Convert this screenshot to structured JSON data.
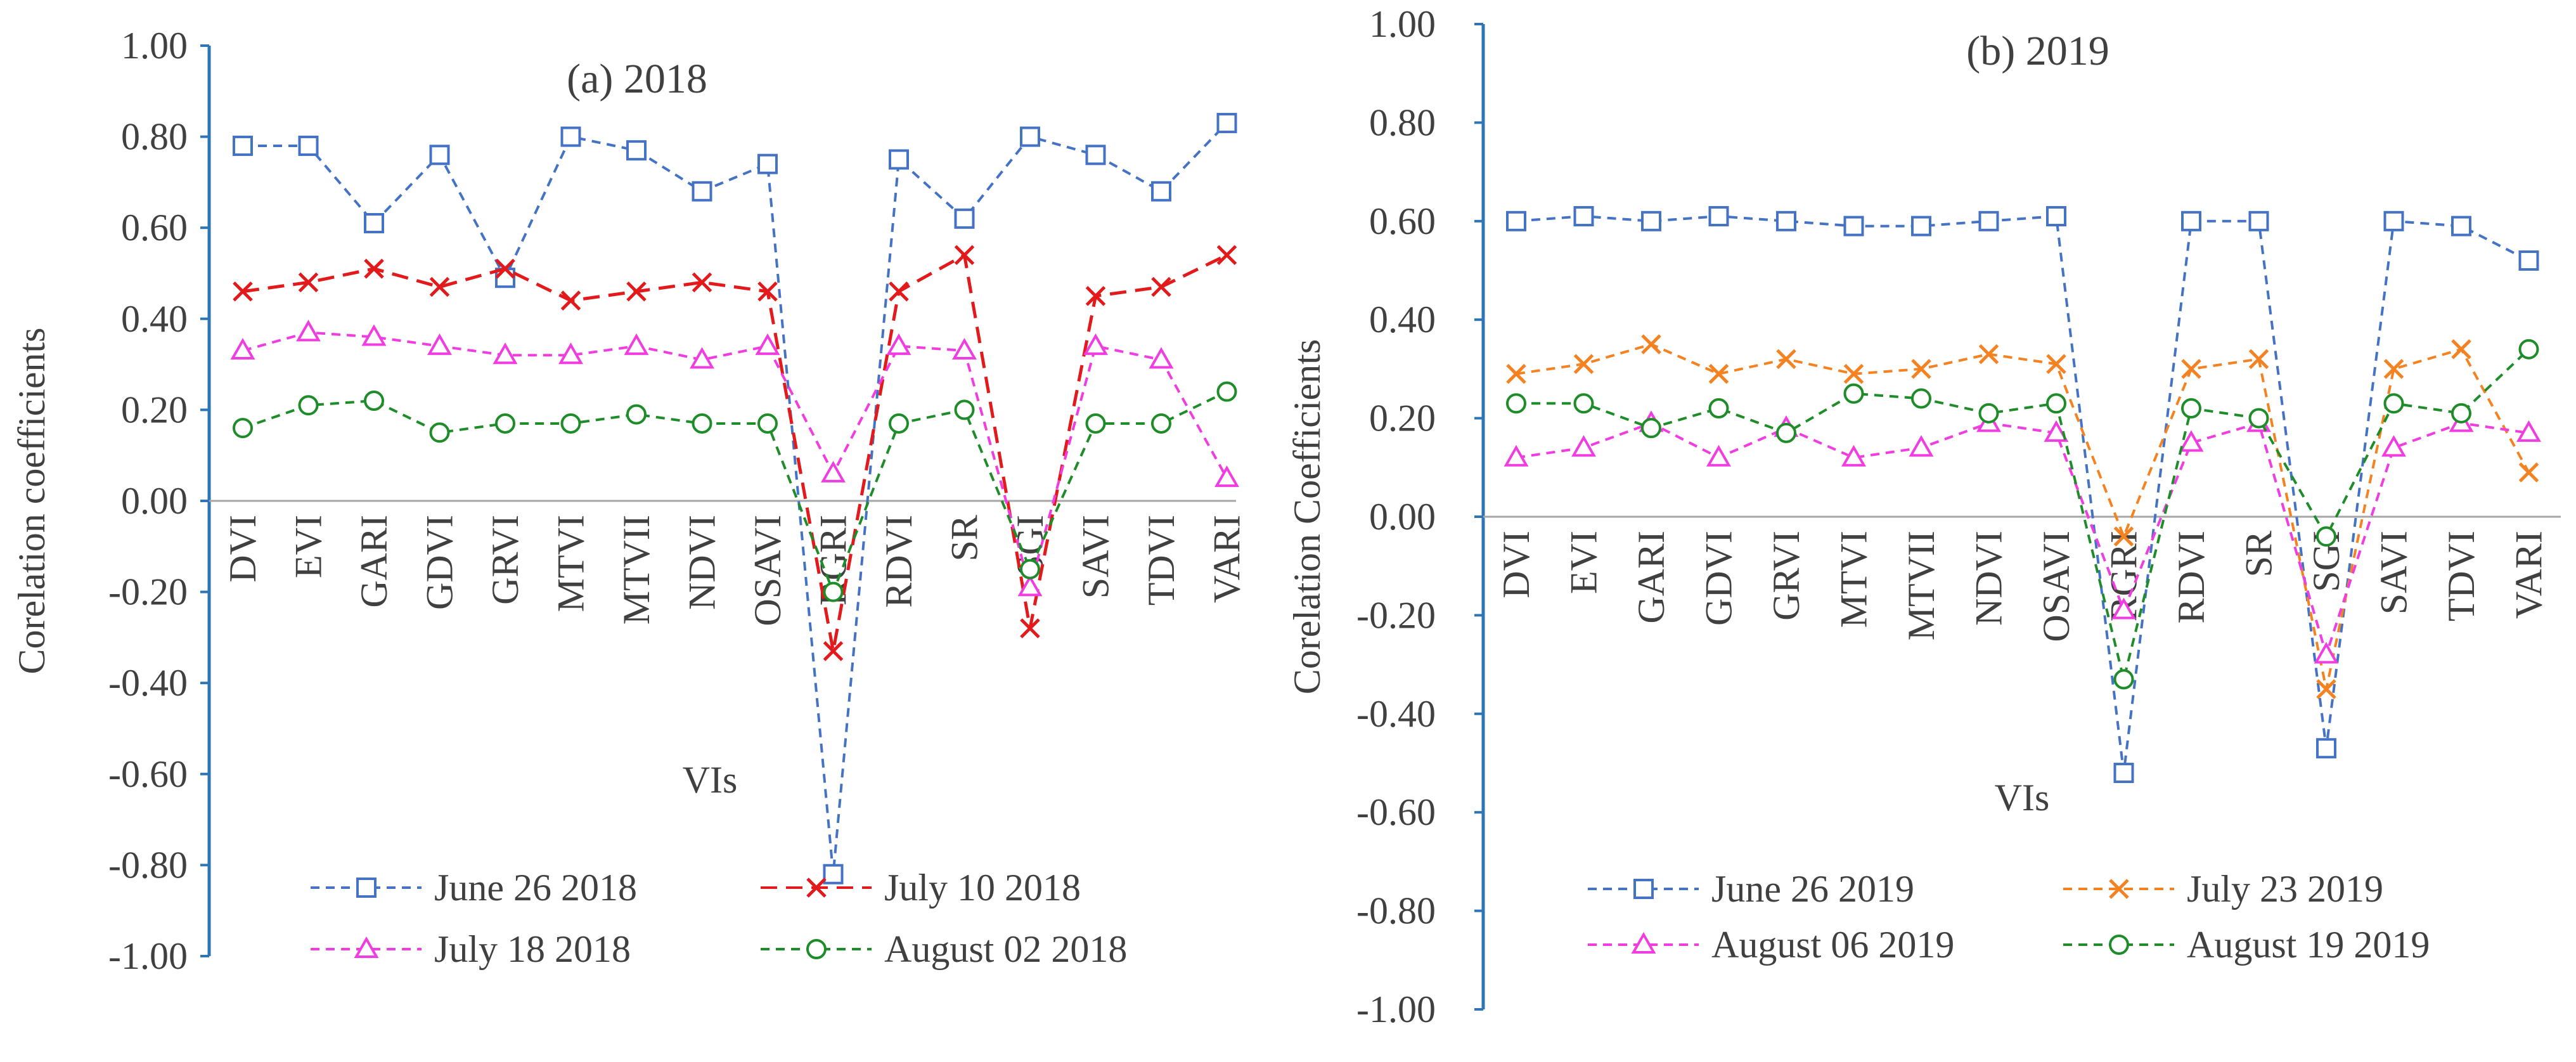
{
  "chart_data": [
    {
      "type": "line",
      "title": "(a) 2018",
      "xlabel": "VIs",
      "ylabel": "Corelation coefficients",
      "ylim": [
        -1.0,
        1.0
      ],
      "y_ticks": [
        "1.00",
        "0.80",
        "0.60",
        "0.40",
        "0.20",
        "0.00",
        "-0.20",
        "-0.40",
        "-0.60",
        "-0.80",
        "-1.00"
      ],
      "categories": [
        "DVI",
        "EVI",
        "GARI",
        "GDVI",
        "GRVI",
        "MTVI",
        "MTVII",
        "NDVI",
        "OSAVI",
        "RGRI",
        "RDVI",
        "SR",
        "SGI",
        "SAVI",
        "TDVI",
        "VARI"
      ],
      "series": [
        {
          "name": "June 26 2018",
          "color": "#4472C4",
          "marker": "square",
          "values": [
            0.78,
            0.78,
            0.61,
            0.76,
            0.49,
            0.8,
            0.77,
            0.68,
            0.74,
            -0.82,
            0.75,
            0.62,
            0.8,
            0.76,
            0.68,
            0.83
          ]
        },
        {
          "name": "July 10 2018",
          "color": "#E31A1C",
          "marker": "x",
          "values": [
            0.46,
            0.48,
            0.51,
            0.47,
            0.51,
            0.44,
            0.46,
            0.48,
            0.46,
            -0.33,
            0.46,
            0.54,
            -0.28,
            0.45,
            0.47,
            0.54
          ]
        },
        {
          "name": "July 18 2018",
          "color": "#F03CE0",
          "marker": "triangle",
          "values": [
            0.33,
            0.37,
            0.36,
            0.34,
            0.32,
            0.32,
            0.34,
            0.31,
            0.34,
            0.06,
            0.34,
            0.33,
            -0.19,
            0.34,
            0.31,
            0.05
          ]
        },
        {
          "name": "August 02 2018",
          "color": "#1E8C28",
          "marker": "circle",
          "values": [
            0.16,
            0.21,
            0.22,
            0.15,
            0.17,
            0.17,
            0.19,
            0.17,
            0.17,
            -0.2,
            0.17,
            0.2,
            -0.15,
            0.17,
            0.17,
            0.24
          ]
        }
      ]
    },
    {
      "type": "line",
      "title": "(b) 2019",
      "xlabel": "VIs",
      "ylabel": "Corelation Coefficients",
      "ylim": [
        -1.0,
        1.0
      ],
      "y_ticks": [
        "1.00",
        "0.80",
        "0.60",
        "0.40",
        "0.20",
        "0.00",
        "-0.20",
        "-0.40",
        "-0.60",
        "-0.80",
        "-1.00"
      ],
      "categories": [
        "DVI",
        "EVI",
        "GARI",
        "GDVI",
        "GRVI",
        "MTVI",
        "MTVII",
        "NDVI",
        "OSAVI",
        "RGRI",
        "RDVI",
        "SR",
        "SGI",
        "SAVI",
        "TDVI",
        "VARI"
      ],
      "series": [
        {
          "name": "June 26 2019",
          "color": "#4472C4",
          "marker": "square",
          "values": [
            0.6,
            0.61,
            0.6,
            0.61,
            0.6,
            0.59,
            0.59,
            0.6,
            0.61,
            -0.52,
            0.6,
            0.6,
            -0.47,
            0.6,
            0.59,
            0.52
          ]
        },
        {
          "name": "July 23 2019",
          "color": "#F58220",
          "marker": "x",
          "values": [
            0.29,
            0.31,
            0.35,
            0.29,
            0.32,
            0.29,
            0.3,
            0.33,
            0.31,
            -0.04,
            0.3,
            0.32,
            -0.35,
            0.3,
            0.34,
            0.09
          ]
        },
        {
          "name": "August 06 2019",
          "color": "#F03CE0",
          "marker": "triangle",
          "values": [
            0.12,
            0.14,
            0.19,
            0.12,
            0.18,
            0.12,
            0.14,
            0.19,
            0.17,
            -0.19,
            0.15,
            0.19,
            -0.28,
            0.14,
            0.19,
            0.17
          ]
        },
        {
          "name": "August 19 2019",
          "color": "#1E8C28",
          "marker": "circle",
          "values": [
            0.23,
            0.23,
            0.18,
            0.22,
            0.17,
            0.25,
            0.24,
            0.21,
            0.23,
            -0.33,
            0.22,
            0.2,
            -0.04,
            0.23,
            0.21,
            0.34
          ]
        }
      ]
    }
  ]
}
